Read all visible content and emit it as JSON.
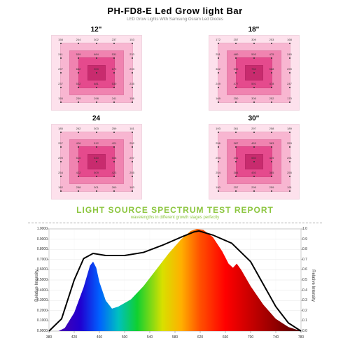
{
  "header": {
    "title": "PH-FD8-E Led Grow  light Bar",
    "subtitle": "LED Grow Lights With Samsung Osram Led Diodes",
    "title_color": "#000000",
    "subtitle_color": "#888888"
  },
  "heatmaps": {
    "grid_size": 5,
    "layer_colors": [
      "#fde1ec",
      "#f8b6d1",
      "#f083b0",
      "#e54a8d",
      "#c82b6e"
    ],
    "map_bg": "#ffffff",
    "dot_color": "#333333",
    "value_fontsize": 4,
    "panels": [
      {
        "label": "12\"",
        "values": [
          [
            158,
            244,
            302,
            237,
            153
          ],
          [
            241,
            539,
            684,
            531,
            233
          ],
          [
            297,
            682,
            900,
            679,
            293
          ],
          [
            237,
            532,
            681,
            530,
            235
          ],
          [
            155,
            239,
            298,
            241,
            156
          ]
        ]
      },
      {
        "label": "18\"",
        "values": [
          [
            172,
            257,
            309,
            253,
            168
          ],
          [
            251,
            480,
            593,
            475,
            245
          ],
          [
            302,
            590,
            760,
            588,
            299
          ],
          [
            249,
            477,
            591,
            478,
            247
          ],
          [
            169,
            250,
            305,
            252,
            170
          ]
        ]
      },
      {
        "label": "24",
        "values": [
          [
            185,
            262,
            303,
            259,
            181
          ],
          [
            257,
            426,
            512,
            421,
            252
          ],
          [
            299,
            510,
            640,
            508,
            297
          ],
          [
            254,
            422,
            509,
            423,
            255
          ],
          [
            182,
            258,
            301,
            260,
            183
          ]
        ]
      },
      {
        "label": "30\"",
        "values": [
          [
            193,
            261,
            297,
            258,
            189
          ],
          [
            256,
            387,
            453,
            383,
            253
          ],
          [
            293,
            451,
            550,
            449,
            291
          ],
          [
            254,
            384,
            450,
            385,
            255
          ],
          [
            190,
            257,
            295,
            259,
            191
          ]
        ]
      }
    ]
  },
  "spectrum": {
    "title": "LIGHT SOURCE SPECTRUM TEST REPORT",
    "title_color": "#8cc63f",
    "subtitle": "wavelengths in different growth stages perfectly",
    "subtitle_color": "#8cc63f"
  },
  "curve": {
    "type": "spectrum_line",
    "x_label": null,
    "y_label_left": "Relative Intensity",
    "y_label_right": "Relative Intensity",
    "xlim": [
      380,
      780
    ],
    "ylim_left": [
      0.0,
      1.0
    ],
    "ylim_right": [
      0.0,
      1.0
    ],
    "xtick_step": 40,
    "x_ticks": [
      380,
      420,
      460,
      500,
      540,
      580,
      620,
      660,
      700,
      740,
      780
    ],
    "y_ticks_left": [
      "0.0000",
      "0.1000",
      "0.2000",
      "0.3000",
      "0.4000",
      "0.5000",
      "0.6000",
      "0.7000",
      "0.8000",
      "0.9000",
      "1.0000"
    ],
    "y_ticks_right": [
      "0.0",
      "0.1",
      "0.2",
      "0.3",
      "0.4",
      "0.5",
      "0.6",
      "0.7",
      "0.8",
      "0.9",
      "1.0"
    ],
    "line_color": "#000000",
    "line_width": 2,
    "background_color": "#ffffff",
    "axis_color": "#aaaaaa",
    "font_size": 5,
    "spectrum_colors": [
      {
        "x": 380,
        "c": "#5a00a0"
      },
      {
        "x": 430,
        "c": "#2000d0"
      },
      {
        "x": 460,
        "c": "#0060ff"
      },
      {
        "x": 490,
        "c": "#00c0c0"
      },
      {
        "x": 520,
        "c": "#10d030"
      },
      {
        "x": 560,
        "c": "#d8e000"
      },
      {
        "x": 590,
        "c": "#ffb000"
      },
      {
        "x": 620,
        "c": "#ff5000"
      },
      {
        "x": 660,
        "c": "#ff0000"
      },
      {
        "x": 740,
        "c": "#900000"
      },
      {
        "x": 780,
        "c": "#500000"
      }
    ],
    "points": [
      {
        "x": 380,
        "y": 0.0
      },
      {
        "x": 395,
        "y": 0.0
      },
      {
        "x": 405,
        "y": 0.03
      },
      {
        "x": 420,
        "y": 0.18
      },
      {
        "x": 435,
        "y": 0.43
      },
      {
        "x": 445,
        "y": 0.64
      },
      {
        "x": 450,
        "y": 0.68
      },
      {
        "x": 455,
        "y": 0.62
      },
      {
        "x": 460,
        "y": 0.48
      },
      {
        "x": 470,
        "y": 0.3
      },
      {
        "x": 480,
        "y": 0.22
      },
      {
        "x": 490,
        "y": 0.24
      },
      {
        "x": 510,
        "y": 0.31
      },
      {
        "x": 530,
        "y": 0.44
      },
      {
        "x": 550,
        "y": 0.6
      },
      {
        "x": 570,
        "y": 0.76
      },
      {
        "x": 590,
        "y": 0.9
      },
      {
        "x": 605,
        "y": 0.98
      },
      {
        "x": 615,
        "y": 1.0
      },
      {
        "x": 625,
        "y": 0.99
      },
      {
        "x": 640,
        "y": 0.92
      },
      {
        "x": 655,
        "y": 0.78
      },
      {
        "x": 665,
        "y": 0.66
      },
      {
        "x": 672,
        "y": 0.62
      },
      {
        "x": 678,
        "y": 0.66
      },
      {
        "x": 685,
        "y": 0.6
      },
      {
        "x": 700,
        "y": 0.44
      },
      {
        "x": 720,
        "y": 0.26
      },
      {
        "x": 740,
        "y": 0.12
      },
      {
        "x": 760,
        "y": 0.04
      },
      {
        "x": 780,
        "y": 0.0
      }
    ],
    "smooth_envelope": [
      {
        "x": 380,
        "y": 0.0
      },
      {
        "x": 400,
        "y": 0.12
      },
      {
        "x": 420,
        "y": 0.5
      },
      {
        "x": 435,
        "y": 0.71
      },
      {
        "x": 450,
        "y": 0.76
      },
      {
        "x": 470,
        "y": 0.74
      },
      {
        "x": 500,
        "y": 0.74
      },
      {
        "x": 530,
        "y": 0.77
      },
      {
        "x": 560,
        "y": 0.84
      },
      {
        "x": 590,
        "y": 0.92
      },
      {
        "x": 610,
        "y": 0.97
      },
      {
        "x": 618,
        "y": 0.98
      },
      {
        "x": 640,
        "y": 0.94
      },
      {
        "x": 670,
        "y": 0.86
      },
      {
        "x": 700,
        "y": 0.68
      },
      {
        "x": 720,
        "y": 0.46
      },
      {
        "x": 740,
        "y": 0.24
      },
      {
        "x": 760,
        "y": 0.08
      },
      {
        "x": 780,
        "y": 0.0
      }
    ]
  }
}
